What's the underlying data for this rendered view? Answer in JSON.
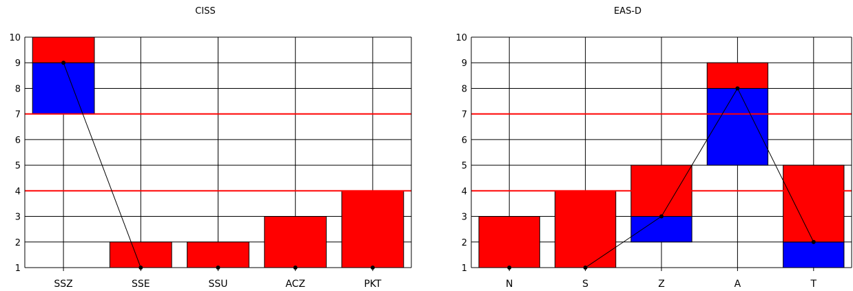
{
  "charts": [
    {
      "title": "CISS",
      "categories": [
        "SSZ",
        "SSE",
        "SSU",
        "ACZ",
        "PKT"
      ],
      "yticks": [
        1,
        2,
        3,
        4,
        5,
        6,
        7,
        8,
        9,
        10
      ]
    },
    {
      "title": "EAS-D",
      "categories": [
        "N",
        "S",
        "Z",
        "A",
        "T"
      ],
      "yticks": [
        1,
        2,
        3,
        4,
        5,
        6,
        7,
        8,
        9,
        10
      ]
    }
  ],
  "colors": {
    "bar_red": "#ff0000",
    "bar_blue": "#0000ff",
    "threshold": "#ff0000",
    "line": "#000000",
    "grid": "#000000"
  },
  "chart_data": [
    {
      "type": "bar",
      "title": "CISS",
      "xlabel": "",
      "ylabel": "",
      "ylim": [
        1,
        10
      ],
      "categories": [
        "SSZ",
        "SSE",
        "SSU",
        "ACZ",
        "PKT"
      ],
      "series": [
        {
          "kind": "blue-range",
          "low": [
            7,
            null,
            null,
            null,
            null
          ],
          "high": [
            9,
            null,
            null,
            null,
            null
          ]
        },
        {
          "kind": "red-range",
          "low": [
            9,
            1,
            1,
            1,
            1
          ],
          "high": [
            10,
            2,
            2,
            3,
            4
          ]
        },
        {
          "kind": "line",
          "values": [
            9,
            1,
            1,
            1,
            1
          ]
        }
      ],
      "thresholds": [
        4,
        7
      ],
      "grid": true
    },
    {
      "type": "bar",
      "title": "EAS-D",
      "xlabel": "",
      "ylabel": "",
      "ylim": [
        1,
        10
      ],
      "categories": [
        "N",
        "S",
        "Z",
        "A",
        "T"
      ],
      "series": [
        {
          "kind": "blue-range",
          "low": [
            null,
            null,
            2,
            5,
            1
          ],
          "high": [
            null,
            null,
            3,
            8,
            2
          ]
        },
        {
          "kind": "red-range",
          "low": [
            1,
            1,
            3,
            8,
            2
          ],
          "high": [
            3,
            4,
            5,
            9,
            5
          ]
        },
        {
          "kind": "line",
          "values": [
            1,
            1,
            3,
            8,
            2
          ]
        }
      ],
      "thresholds": [
        4,
        7
      ],
      "grid": true
    }
  ]
}
